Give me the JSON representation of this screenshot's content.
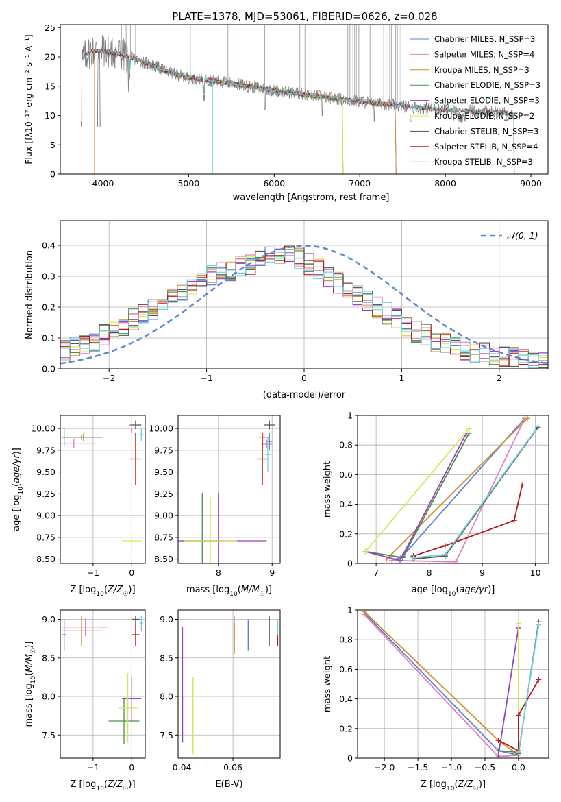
{
  "figure": {
    "title": "PLATE=1378, MJD=53061, FIBERID=0626, z=0.028"
  },
  "palette": {
    "Chabrier MILES": "#5b82d6",
    "Salpeter MILES": "#e57fbd",
    "Kroupa MILES": "#cf8c2a",
    "Chabrier ELODIE": "#4f8f4f",
    "Salpeter ELODIE": "#9b3fc4",
    "Kroupa ELODIE": "#d7e655",
    "Chabrier STELIB": "#555555",
    "Salpeter STELIB": "#b41c1c",
    "Kroupa STELIB": "#6fd3dc",
    "orange_line": "#e07a2c",
    "grid": "#b0b0b0",
    "data_gray": "#808080"
  },
  "chart_data": [
    {
      "id": "spectrum",
      "type": "line",
      "xlabel": "wavelength [Angstrom, rest frame]",
      "ylabel": "Flux [fλ10⁻¹⁷ erg cm⁻² s⁻¹ A⁻¹]",
      "xlim": [
        3500,
        9200
      ],
      "ylim": [
        0,
        25.5
      ],
      "xticks": [
        4000,
        5000,
        6000,
        7000,
        8000,
        9000
      ],
      "yticks": [
        0,
        5,
        10,
        15,
        20,
        25
      ],
      "grid": false,
      "legend_position": "top-right",
      "legend": [
        {
          "model": "Chabrier MILES",
          "label": "Chabrier MILES, N_SSP=3"
        },
        {
          "model": "Salpeter MILES",
          "label": "Salpeter MILES, N_SSP=4"
        },
        {
          "model": "Kroupa MILES",
          "label": "Kroupa MILES, N_SSP=3"
        },
        {
          "model": "Chabrier ELODIE",
          "label": "Chabrier ELODIE, N_SSP=3"
        },
        {
          "model": "Salpeter ELODIE",
          "label": "Salpeter ELODIE, N_SSP=3"
        },
        {
          "model": "Kroupa ELODIE",
          "label": "Kroupa ELODIE, N_SSP=2"
        },
        {
          "model": "Chabrier STELIB",
          "label": "Chabrier STELIB, N_SSP=3"
        },
        {
          "model": "Salpeter STELIB",
          "label": "Salpeter STELIB, N_SSP=4"
        },
        {
          "model": "Kroupa STELIB",
          "label": "Kroupa STELIB, N_SSP=3"
        }
      ],
      "continuum": [
        [
          3750,
          19.5
        ],
        [
          3850,
          21.0
        ],
        [
          4000,
          21.0
        ],
        [
          4200,
          20.5
        ],
        [
          4500,
          19.0
        ],
        [
          4800,
          17.2
        ],
        [
          5000,
          16.5
        ],
        [
          5500,
          15.5
        ],
        [
          6000,
          14.3
        ],
        [
          6500,
          13.3
        ],
        [
          7000,
          12.4
        ],
        [
          7500,
          11.6
        ],
        [
          8000,
          11.0
        ],
        [
          8500,
          10.6
        ],
        [
          8800,
          10.3
        ]
      ],
      "model_ranges": [
        {
          "model": "Chabrier MILES",
          "x": [
            3750,
            7420
          ]
        },
        {
          "model": "Salpeter MILES",
          "x": [
            3750,
            7420
          ]
        },
        {
          "model": "Kroupa MILES",
          "x": [
            3750,
            7420
          ]
        },
        {
          "model": "Chabrier ELODIE",
          "x": [
            3900,
            6800
          ]
        },
        {
          "model": "Salpeter ELODIE",
          "x": [
            3900,
            6800
          ]
        },
        {
          "model": "Kroupa ELODIE",
          "x": [
            3900,
            6800
          ]
        },
        {
          "model": "Chabrier STELIB",
          "x": [
            3750,
            8800
          ]
        },
        {
          "model": "Salpeter STELIB",
          "x": [
            3750,
            8800
          ]
        },
        {
          "model": "Kroupa STELIB",
          "x": [
            3750,
            8800
          ]
        }
      ]
    },
    {
      "id": "residuals",
      "type": "histogram",
      "xlabel": "(data-model)/error",
      "ylabel": "Normed distribution",
      "xlim": [
        -2.5,
        2.5
      ],
      "ylim": [
        0,
        0.48
      ],
      "xticks": [
        -2,
        -1,
        0,
        1,
        2
      ],
      "yticks": [
        0.0,
        0.1,
        0.2,
        0.3,
        0.4
      ],
      "grid": true,
      "legend_position": "top-right",
      "reference_curve": {
        "label": "𝒩(0, 1)",
        "mean": 0,
        "sigma": 1
      },
      "bin_width": 0.1,
      "bin_start": -2.5,
      "base_distribution_per_bin": [
        0.06,
        0.07,
        0.08,
        0.09,
        0.11,
        0.12,
        0.14,
        0.16,
        0.18,
        0.19,
        0.21,
        0.23,
        0.25,
        0.27,
        0.28,
        0.3,
        0.31,
        0.32,
        0.33,
        0.34,
        0.35,
        0.36,
        0.37,
        0.37,
        0.36,
        0.34,
        0.32,
        0.3,
        0.28,
        0.26,
        0.24,
        0.22,
        0.2,
        0.18,
        0.16,
        0.14,
        0.12,
        0.11,
        0.09,
        0.08,
        0.07,
        0.06,
        0.055,
        0.05,
        0.045,
        0.04,
        0.035,
        0.03,
        0.028,
        0.025
      ]
    },
    {
      "id": "age-vs-Z",
      "type": "errorbar",
      "xlabel": "Z [log10(Z/Z☉)]",
      "ylabel": "age  [log10(age/yr)]",
      "xlim": [
        -1.85,
        0.35
      ],
      "ylim": [
        8.45,
        10.15
      ],
      "xticks": [
        -1,
        0
      ],
      "yticks": [
        8.5,
        8.75,
        9.0,
        9.25,
        9.5,
        9.75,
        10.0
      ],
      "ytick_labels": [
        "8.50",
        "8.75",
        "9.00",
        "9.25",
        "9.50",
        "9.75",
        "10.00"
      ],
      "grid": true,
      "points": [
        {
          "model": "Chabrier MILES",
          "x": -1.75,
          "y": 9.9,
          "xerr": 0.05,
          "yerr": 0.1
        },
        {
          "model": "Salpeter MILES",
          "x": -1.5,
          "y": 9.83,
          "xerr": 0.6,
          "yerr": 0.05
        },
        {
          "model": "Kroupa MILES",
          "x": -1.25,
          "y": 9.9,
          "xerr": 0.5,
          "yerr": 0.05
        },
        {
          "model": "Chabrier ELODIE",
          "x": -1.3,
          "y": 9.9,
          "xerr": 0.5,
          "yerr": 0.03
        },
        {
          "model": "Salpeter ELODIE",
          "x": 0.0,
          "y": 9.98,
          "xerr": 0.03,
          "yerr": 0.03
        },
        {
          "model": "Kroupa ELODIE",
          "x": 0.0,
          "y": 8.71,
          "xerr": 0.25,
          "yerr": 0.05
        },
        {
          "model": "Chabrier STELIB",
          "x": 0.1,
          "y": 10.04,
          "xerr": 0.15,
          "yerr": 0.05
        },
        {
          "model": "Salpeter STELIB",
          "x": 0.1,
          "y": 9.65,
          "xerr": 0.15,
          "yerr": 0.3
        },
        {
          "model": "Kroupa STELIB",
          "x": 0.25,
          "y": 9.93,
          "xerr": 0.05,
          "yerr": 0.07
        }
      ]
    },
    {
      "id": "age-vs-mass",
      "type": "errorbar",
      "xlabel": "mass [log10(M/M☉)]",
      "ylabel": "",
      "xlim": [
        7.25,
        9.15
      ],
      "ylim": [
        8.45,
        10.15
      ],
      "xticks": [
        8,
        9
      ],
      "yticks": [
        8.5,
        8.75,
        9.0,
        9.25,
        9.5,
        9.75,
        10.0
      ],
      "ytick_labels": [
        "8.50",
        "8.75",
        "9.00",
        "9.25",
        "9.50",
        "9.75",
        "10.00"
      ],
      "grid": true,
      "points": [
        {
          "model": "Chabrier MILES",
          "x": 8.95,
          "y": 9.85,
          "xerr": 0.05,
          "yerr": 0.1
        },
        {
          "model": "Salpeter MILES",
          "x": 8.9,
          "y": 9.82,
          "xerr": 0.1,
          "yerr": 0.05
        },
        {
          "model": "Kroupa MILES",
          "x": 8.85,
          "y": 9.9,
          "xerr": 0.1,
          "yerr": 0.05
        },
        {
          "model": "Chabrier ELODIE",
          "x": 7.7,
          "y": 8.71,
          "xerr": 0.4,
          "yerr": 0.55
        },
        {
          "model": "Salpeter ELODIE",
          "x": 8.0,
          "y": 8.71,
          "xerr": 0.9,
          "yerr": 0.55
        },
        {
          "model": "Kroupa ELODIE",
          "x": 7.85,
          "y": 8.71,
          "xerr": 0.5,
          "yerr": 0.5
        },
        {
          "model": "Chabrier STELIB",
          "x": 8.95,
          "y": 10.04,
          "xerr": 0.1,
          "yerr": 0.05
        },
        {
          "model": "Salpeter STELIB",
          "x": 8.82,
          "y": 9.65,
          "xerr": 0.1,
          "yerr": 0.3
        },
        {
          "model": "Kroupa STELIB",
          "x": 8.92,
          "y": 9.7,
          "xerr": 0.05,
          "yerr": 0.2
        }
      ]
    },
    {
      "id": "mass-weight-vs-age",
      "type": "line",
      "xlabel": "age  [log10(age/yr)]",
      "ylabel": "mass weight",
      "xlim": [
        6.65,
        10.25
      ],
      "ylim": [
        0,
        1.0
      ],
      "xticks": [
        7,
        8,
        9,
        10
      ],
      "yticks": [
        0.0,
        0.2,
        0.4,
        0.6,
        0.8,
        1.0
      ],
      "grid": true,
      "series": [
        {
          "model": "Chabrier MILES",
          "x": [
            7.3,
            7.5,
            9.8
          ],
          "y": [
            0.02,
            0.05,
            0.98
          ]
        },
        {
          "model": "Salpeter MILES",
          "x": [
            7.3,
            8.5,
            9.8
          ],
          "y": [
            0.02,
            0.01,
            0.98
          ]
        },
        {
          "model": "Kroupa MILES",
          "x": [
            7.2,
            9.85
          ],
          "y": [
            0.03,
            0.98
          ]
        },
        {
          "model": "Chabrier ELODIE",
          "x": [
            6.8,
            7.5,
            8.75
          ],
          "y": [
            0.08,
            0.04,
            0.88
          ]
        },
        {
          "model": "Salpeter ELODIE",
          "x": [
            6.8,
            7.45,
            8.7
          ],
          "y": [
            0.08,
            0.02,
            0.88
          ]
        },
        {
          "model": "Kroupa ELODIE",
          "x": [
            6.8,
            8.75
          ],
          "y": [
            0.08,
            0.91
          ]
        },
        {
          "model": "Chabrier STELIB",
          "x": [
            7.7,
            8.3,
            10.05
          ],
          "y": [
            0.03,
            0.05,
            0.92
          ]
        },
        {
          "model": "Salpeter STELIB",
          "x": [
            7.7,
            8.3,
            9.6,
            9.75
          ],
          "y": [
            0.05,
            0.12,
            0.29,
            0.53
          ]
        },
        {
          "model": "Kroupa STELIB",
          "x": [
            7.7,
            8.3,
            10.0
          ],
          "y": [
            0.04,
            0.06,
            0.9
          ]
        }
      ]
    },
    {
      "id": "mass-vs-Z",
      "type": "errorbar",
      "xlabel": "Z [log10(Z/Z☉)]",
      "ylabel": "mass [log10(M/M☉)]",
      "xlim": [
        -1.85,
        0.35
      ],
      "ylim": [
        7.2,
        9.12
      ],
      "xticks": [
        -1,
        0
      ],
      "yticks": [
        7.5,
        8.0,
        8.5,
        9.0
      ],
      "ytick_labels": [
        "7.5",
        "8.0",
        "8.5",
        "9.0"
      ],
      "grid": true,
      "points": [
        {
          "model": "Chabrier MILES",
          "x": -1.75,
          "y": 8.8,
          "xerr": 0.05,
          "yerr": 0.2
        },
        {
          "model": "Salpeter MILES",
          "x": -1.2,
          "y": 8.9,
          "xerr": 0.6,
          "yerr": 0.12
        },
        {
          "model": "Kroupa MILES",
          "x": -1.3,
          "y": 8.85,
          "xerr": 0.5,
          "yerr": 0.2
        },
        {
          "model": "Chabrier ELODIE",
          "x": -0.2,
          "y": 7.68,
          "xerr": 0.4,
          "yerr": 0.3
        },
        {
          "model": "Salpeter ELODIE",
          "x": 0.0,
          "y": 7.97,
          "xerr": 0.25,
          "yerr": 0.3
        },
        {
          "model": "Kroupa ELODIE",
          "x": -0.1,
          "y": 7.85,
          "xerr": 0.25,
          "yerr": 0.45
        },
        {
          "model": "Chabrier STELIB",
          "x": 0.1,
          "y": 9.0,
          "xerr": 0.1,
          "yerr": 0.05
        },
        {
          "model": "Salpeter STELIB",
          "x": 0.1,
          "y": 8.8,
          "xerr": 0.1,
          "yerr": 0.15
        },
        {
          "model": "Kroupa STELIB",
          "x": 0.25,
          "y": 8.95,
          "xerr": 0.05,
          "yerr": 0.1
        }
      ]
    },
    {
      "id": "mass-vs-EBV",
      "type": "errorbar",
      "xlabel": "E(B-V)",
      "ylabel": "",
      "xlim": [
        0.0385,
        0.0785
      ],
      "ylim": [
        7.2,
        9.12
      ],
      "xticks": [
        0.04,
        0.06
      ],
      "yticks": [
        7.5,
        8.0,
        8.5,
        9.0
      ],
      "ytick_labels": [
        "7.5",
        "8.0",
        "8.5",
        "9.0"
      ],
      "grid": true,
      "points": [
        {
          "model": "Chabrier MILES",
          "x": 0.066,
          "y": 8.8,
          "xerr": 0,
          "yerr": 0.2
        },
        {
          "model": "Salpeter MILES",
          "x": 0.0605,
          "y": 8.85,
          "xerr": 0,
          "yerr": 0.2
        },
        {
          "model": "Kroupa MILES",
          "x": 0.0605,
          "y": 8.75,
          "xerr": 0,
          "yerr": 0.2
        },
        {
          "model": "Chabrier ELODIE",
          "x": 0.0402,
          "y": 7.7,
          "xerr": 0,
          "yerr": 0.3
        },
        {
          "model": "Salpeter ELODIE",
          "x": 0.0402,
          "y": 8.15,
          "xerr": 0,
          "yerr": 0.75
        },
        {
          "model": "Kroupa ELODIE",
          "x": 0.0443,
          "y": 7.75,
          "xerr": 0,
          "yerr": 0.5
        },
        {
          "model": "Chabrier STELIB",
          "x": 0.0742,
          "y": 8.85,
          "xerr": 0,
          "yerr": 0.2
        },
        {
          "model": "Salpeter STELIB",
          "x": 0.0775,
          "y": 8.8,
          "xerr": 0,
          "yerr": 0.15
        },
        {
          "model": "Kroupa STELIB",
          "x": 0.0775,
          "y": 8.9,
          "xerr": 0,
          "yerr": 0.1
        }
      ]
    },
    {
      "id": "mass-weight-vs-Z",
      "type": "line",
      "xlabel": "Z [log10(Z/Z☉)]",
      "ylabel": "mass weight",
      "xlim": [
        -2.4,
        0.45
      ],
      "ylim": [
        0,
        1.0
      ],
      "xticks": [
        -2.0,
        -1.5,
        -1.0,
        -0.5,
        0.0
      ],
      "xtick_labels": [
        "−2.0",
        "−1.5",
        "−1.0",
        "−0.5",
        "0.0"
      ],
      "yticks": [
        0.0,
        0.2,
        0.4,
        0.6,
        0.8,
        1.0
      ],
      "grid": true,
      "series": [
        {
          "model": "Chabrier MILES",
          "x": [
            -2.3,
            -0.3,
            0.0
          ],
          "y": [
            0.98,
            0.05,
            0.02
          ]
        },
        {
          "model": "Salpeter MILES",
          "x": [
            -2.3,
            -0.3,
            0.0
          ],
          "y": [
            0.97,
            0.01,
            0.02
          ]
        },
        {
          "model": "Kroupa MILES",
          "x": [
            -2.3,
            -0.3,
            0.0
          ],
          "y": [
            0.99,
            0.12,
            0.02
          ]
        },
        {
          "model": "Chabrier ELODIE",
          "x": [
            -0.3,
            0.0,
            0.0
          ],
          "y": [
            0.05,
            0.04,
            0.88
          ]
        },
        {
          "model": "Salpeter ELODIE",
          "x": [
            -0.3,
            0.0
          ],
          "y": [
            0.02,
            0.88
          ]
        },
        {
          "model": "Kroupa ELODIE",
          "x": [
            0.0,
            0.0
          ],
          "y": [
            0.08,
            0.91
          ]
        },
        {
          "model": "Chabrier STELIB",
          "x": [
            0.0,
            0.3
          ],
          "y": [
            0.03,
            0.92
          ]
        },
        {
          "model": "Salpeter STELIB",
          "x": [
            -0.3,
            0.0,
            0.0,
            0.3
          ],
          "y": [
            0.12,
            0.05,
            0.29,
            0.53
          ]
        },
        {
          "model": "Kroupa STELIB",
          "x": [
            0.0,
            0.3
          ],
          "y": [
            0.04,
            0.9
          ]
        }
      ]
    }
  ]
}
